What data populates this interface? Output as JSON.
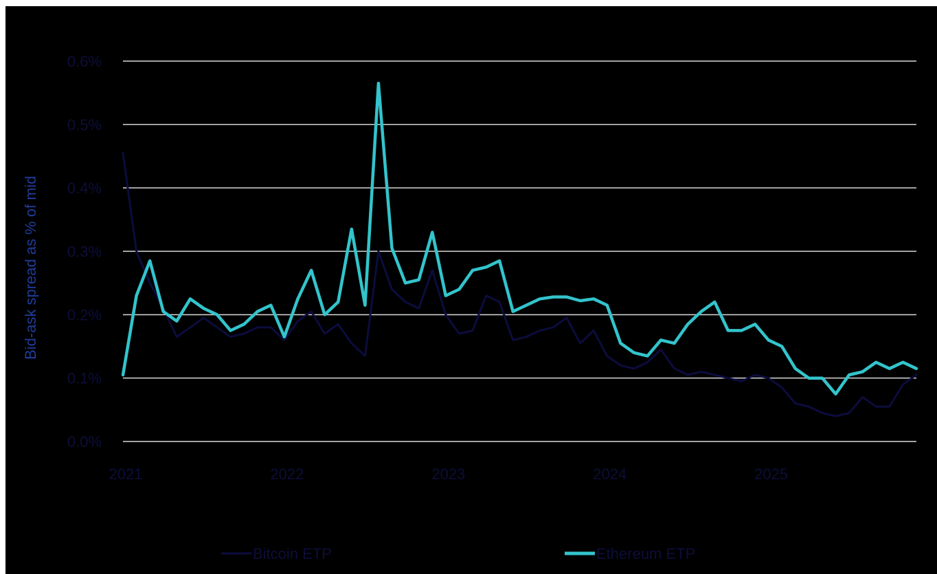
{
  "chart_data": {
    "type": "line",
    "title": "",
    "xlabel": "",
    "ylabel": "Bid-ask spread as % of mid",
    "x_start": "2021-01",
    "x_end": "2025-12",
    "x_ticks": [
      "2021",
      "2022",
      "2023",
      "2024",
      "2025"
    ],
    "y_ticks": [
      "0.0%",
      "0.1%",
      "0.2%",
      "0.3%",
      "0.4%",
      "0.5%",
      "0.6%"
    ],
    "ylim": [
      0,
      0.6
    ],
    "grid": "horizontal",
    "legend_position": "bottom",
    "colors": {
      "background": "#000000",
      "grid": "#d9d9d9",
      "text": "#0d0d3a",
      "ylabel": "#1f3c9a"
    },
    "series": [
      {
        "name": "Bitcoin ETP",
        "color": "#0c0c3e",
        "values": [
          0.455,
          0.3,
          0.25,
          0.21,
          0.165,
          0.18,
          0.195,
          0.18,
          0.165,
          0.17,
          0.18,
          0.18,
          0.16,
          0.19,
          0.205,
          0.17,
          0.185,
          0.155,
          0.135,
          0.3,
          0.24,
          0.22,
          0.21,
          0.27,
          0.2,
          0.17,
          0.175,
          0.23,
          0.22,
          0.16,
          0.165,
          0.175,
          0.18,
          0.195,
          0.155,
          0.175,
          0.135,
          0.12,
          0.115,
          0.125,
          0.145,
          0.115,
          0.105,
          0.11,
          0.105,
          0.1,
          0.095,
          0.105,
          0.1,
          0.085,
          0.06,
          0.055,
          0.045,
          0.04,
          0.045,
          0.07,
          0.055,
          0.055,
          0.09,
          0.105
        ]
      },
      {
        "name": "Ethereum ETP",
        "color": "#33c4cc",
        "values": [
          0.105,
          0.23,
          0.285,
          0.205,
          0.19,
          0.225,
          0.21,
          0.2,
          0.175,
          0.185,
          0.205,
          0.215,
          0.165,
          0.225,
          0.27,
          0.2,
          0.22,
          0.335,
          0.215,
          0.565,
          0.305,
          0.25,
          0.255,
          0.33,
          0.23,
          0.24,
          0.27,
          0.275,
          0.285,
          0.205,
          0.215,
          0.225,
          0.228,
          0.228,
          0.222,
          0.225,
          0.215,
          0.155,
          0.14,
          0.135,
          0.16,
          0.155,
          0.185,
          0.205,
          0.22,
          0.175,
          0.175,
          0.185,
          0.16,
          0.15,
          0.115,
          0.1,
          0.1,
          0.075,
          0.105,
          0.11,
          0.125,
          0.115,
          0.125,
          0.115
        ]
      }
    ]
  }
}
